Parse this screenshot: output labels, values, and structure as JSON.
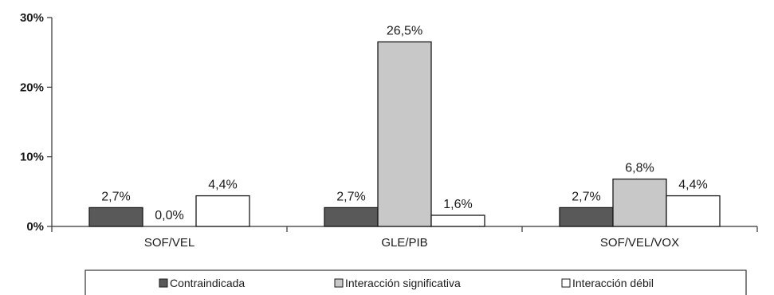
{
  "chart_data": {
    "type": "bar",
    "categories": [
      "SOF/VEL",
      "GLE/PIB",
      "SOF/VEL/VOX"
    ],
    "series": [
      {
        "name": "Contraindicada",
        "values": [
          2.7,
          2.7,
          2.7
        ],
        "labels": [
          "2,7%",
          "2,7%",
          "2,7%"
        ],
        "color": "#595959"
      },
      {
        "name": "Interacción significativa",
        "values": [
          0.0,
          26.5,
          6.8
        ],
        "labels": [
          "0,0%",
          "26,5%",
          "6,8%"
        ],
        "color": "#c8c8c8"
      },
      {
        "name": "Interacción débil",
        "values": [
          4.4,
          1.6,
          4.4
        ],
        "labels": [
          "4,4%",
          "1,6%",
          "4,4%"
        ],
        "color": "#ffffff"
      }
    ],
    "yticks": [
      {
        "value": 0,
        "label": "0%"
      },
      {
        "value": 10,
        "label": "10%"
      },
      {
        "value": 20,
        "label": "20%"
      },
      {
        "value": 30,
        "label": "30%"
      }
    ],
    "ylim": [
      0,
      30
    ],
    "grid": false,
    "legend_position": "bottom"
  }
}
